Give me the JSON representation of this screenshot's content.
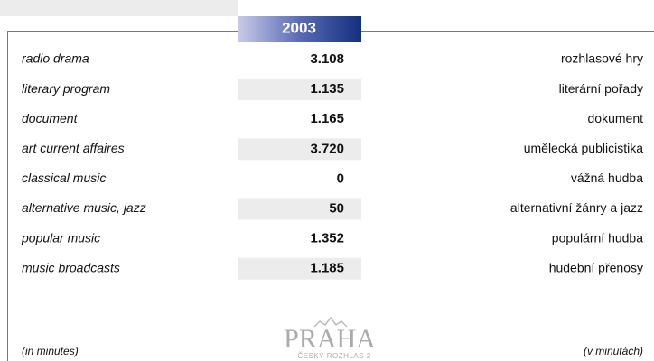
{
  "header": {
    "year": "2003"
  },
  "table": {
    "rows": [
      [
        "radio drama",
        "3.108",
        "rozhlasové hry"
      ],
      [
        "literary program",
        "1.135",
        "literární pořady"
      ],
      [
        "document",
        "1.165",
        "dokument"
      ],
      [
        "art current affaires",
        "3.720",
        "umělecká publicistika"
      ],
      [
        "classical music",
        "0",
        "vážná hudba"
      ],
      [
        "alternative music, jazz",
        "50",
        "alternativní žánry a jazz"
      ],
      [
        "popular music",
        "1.352",
        "populární hudba"
      ],
      [
        "music broadcasts",
        "1.185",
        "hudební přenosy"
      ]
    ]
  },
  "footer": {
    "unit_en": "(in minutes)",
    "unit_cz": "(v minutách)"
  },
  "logo": {
    "name": "PRAHA",
    "station": "ČESKÝ ROZHLAS 2"
  }
}
